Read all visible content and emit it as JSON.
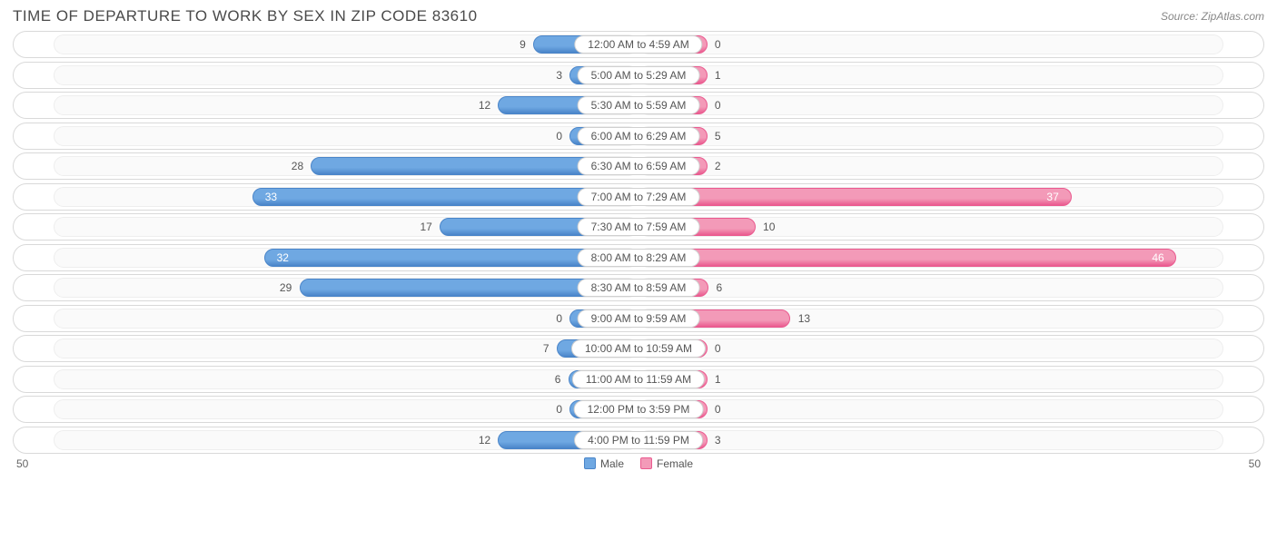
{
  "title": "TIME OF DEPARTURE TO WORK BY SEX IN ZIP CODE 83610",
  "source": "Source: ZipAtlas.com",
  "chart": {
    "type": "diverging-bar",
    "axis_max": 50,
    "axis_label_left": "50",
    "axis_label_right": "50",
    "track_inset_pct": 3.2,
    "min_bar_pct": 5.5,
    "colors": {
      "male_fill": "#6fa8e2",
      "male_border": "#4a85c9",
      "female_fill": "#f39ab8",
      "female_border": "#ea5a8f",
      "row_border": "#d9d9d9",
      "track_bg": "#fafafa",
      "track_border": "#eeeeee",
      "background": "#ffffff",
      "text": "#555555"
    },
    "legend": [
      {
        "label": "Male",
        "color": "#6fa8e2",
        "border": "#4a85c9"
      },
      {
        "label": "Female",
        "color": "#f39ab8",
        "border": "#ea5a8f"
      }
    ],
    "rows": [
      {
        "label": "12:00 AM to 4:59 AM",
        "male": 9,
        "female": 0
      },
      {
        "label": "5:00 AM to 5:29 AM",
        "male": 3,
        "female": 1
      },
      {
        "label": "5:30 AM to 5:59 AM",
        "male": 12,
        "female": 0
      },
      {
        "label": "6:00 AM to 6:29 AM",
        "male": 0,
        "female": 5
      },
      {
        "label": "6:30 AM to 6:59 AM",
        "male": 28,
        "female": 2
      },
      {
        "label": "7:00 AM to 7:29 AM",
        "male": 33,
        "female": 37
      },
      {
        "label": "7:30 AM to 7:59 AM",
        "male": 17,
        "female": 10
      },
      {
        "label": "8:00 AM to 8:29 AM",
        "male": 32,
        "female": 46
      },
      {
        "label": "8:30 AM to 8:59 AM",
        "male": 29,
        "female": 6
      },
      {
        "label": "9:00 AM to 9:59 AM",
        "male": 0,
        "female": 13
      },
      {
        "label": "10:00 AM to 10:59 AM",
        "male": 7,
        "female": 0
      },
      {
        "label": "11:00 AM to 11:59 AM",
        "male": 6,
        "female": 1
      },
      {
        "label": "12:00 PM to 3:59 PM",
        "male": 0,
        "female": 0
      },
      {
        "label": "4:00 PM to 11:59 PM",
        "male": 12,
        "female": 3
      }
    ]
  }
}
